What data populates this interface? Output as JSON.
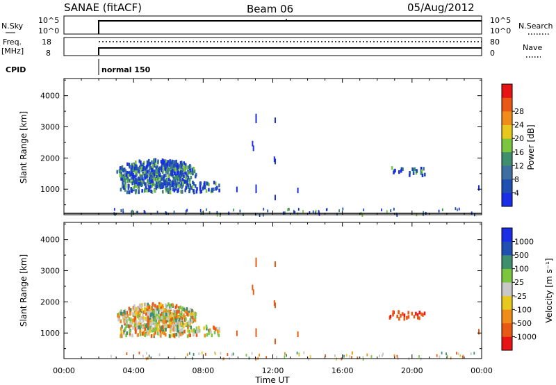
{
  "header": {
    "title": "SANAE (fitACF)",
    "beam": "Beam 06",
    "date": "05/Aug/2012"
  },
  "sky_panel": {
    "left_label": "N.Sky",
    "left_ticks": [
      "10^5",
      "10^0"
    ],
    "right_ticks": [
      "10^5",
      "10^0"
    ],
    "right_label": "N.Search",
    "right_line_style": "dotted"
  },
  "freq_panel": {
    "left_label_1": "Freq.",
    "left_label_2": "[MHz]",
    "left_ticks": [
      "18",
      "8"
    ],
    "right_ticks": [
      "80",
      "0"
    ],
    "right_label": "Nave",
    "right_line_style": "dotted"
  },
  "cpid": {
    "label": "CPID",
    "mode_text": "normal 150",
    "start_time": "02:00"
  },
  "axes": {
    "ylabel": "Slant Range [km]",
    "xlabel": "Time UT",
    "yticks": [
      "1000",
      "2000",
      "3000",
      "4000"
    ],
    "xticks": [
      "00:00",
      "04:00",
      "08:00",
      "12:00",
      "16:00",
      "20:00",
      "00:00"
    ]
  },
  "chart_data": [
    {
      "type": "heatmap",
      "panel": "power",
      "xlabel": "Time UT",
      "ylabel": "Slant Range [km]",
      "xlim_hours": [
        0,
        24
      ],
      "ylim_km": [
        180,
        4550
      ],
      "colorbar": {
        "label": "Power [dB]",
        "ticks": [
          "4",
          "8",
          "12",
          "16",
          "20",
          "24",
          "28"
        ],
        "colors": [
          "#1a2ee6",
          "#1f4fb0",
          "#3f6fa0",
          "#3f8f6f",
          "#7cc63f",
          "#e6c81f",
          "#f08c1a",
          "#e85a14",
          "#e61414"
        ]
      },
      "regions": [
        {
          "t0": 3.0,
          "t1": 7.6,
          "r0": 1100,
          "r1": 2000,
          "dominant": "blue",
          "note": "main echo cluster"
        },
        {
          "t0": 5.0,
          "t1": 9.0,
          "r0": 900,
          "r1": 1300,
          "dominant": "blue"
        },
        {
          "t0": 18.5,
          "t1": 20.8,
          "r0": 1500,
          "r1": 1750,
          "dominant": "blue"
        },
        {
          "t0": 11.0,
          "t1": 12.5,
          "r0": 800,
          "r1": 3450,
          "dominant": "blue",
          "note": "sparse vertical streaks"
        }
      ]
    },
    {
      "type": "heatmap",
      "panel": "velocity",
      "xlabel": "Time UT",
      "ylabel": "Slant Range [km]",
      "xlim_hours": [
        0,
        24
      ],
      "ylim_km": [
        180,
        4550
      ],
      "colorbar": {
        "label": "Velocity [m s⁻¹]",
        "ticks": [
          "1000",
          "500",
          "100",
          "25",
          "-25",
          "-100",
          "-500",
          "-1000"
        ],
        "colors": [
          "#1a2ee6",
          "#1f4fb0",
          "#3f8f6f",
          "#7cc63f",
          "#c8c8c8",
          "#e6c81f",
          "#f08c1a",
          "#e85a14",
          "#e61414"
        ]
      },
      "regions": [
        {
          "t0": 3.0,
          "t1": 7.6,
          "r0": 1100,
          "r1": 2050,
          "dominant": "green/orange"
        },
        {
          "t0": 5.0,
          "t1": 9.0,
          "r0": 900,
          "r1": 1300,
          "dominant": "green"
        },
        {
          "t0": 18.5,
          "t1": 20.8,
          "r0": 1500,
          "r1": 1750,
          "dominant": "red"
        },
        {
          "t0": 11.0,
          "t1": 12.5,
          "r0": 800,
          "r1": 3450,
          "dominant": "red",
          "note": "sparse vertical streaks"
        }
      ]
    }
  ]
}
